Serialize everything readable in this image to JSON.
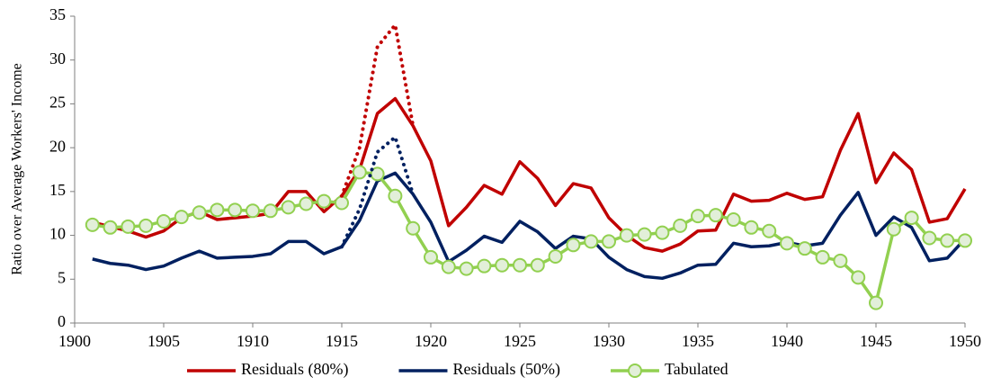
{
  "chart_data": {
    "type": "line",
    "y_label": "Ratio over Average Workers' Income",
    "x": [
      1901,
      1902,
      1903,
      1904,
      1905,
      1906,
      1907,
      1908,
      1909,
      1910,
      1911,
      1912,
      1913,
      1914,
      1915,
      1916,
      1917,
      1918,
      1919,
      1920,
      1921,
      1922,
      1923,
      1924,
      1925,
      1926,
      1927,
      1928,
      1929,
      1930,
      1931,
      1932,
      1933,
      1934,
      1935,
      1936,
      1937,
      1938,
      1939,
      1940,
      1941,
      1942,
      1943,
      1944,
      1945,
      1946,
      1947,
      1948,
      1949,
      1950
    ],
    "xlim": [
      1900,
      1950
    ],
    "xticks": [
      1900,
      1905,
      1910,
      1915,
      1920,
      1925,
      1930,
      1935,
      1940,
      1945,
      1950
    ],
    "ylim": [
      0,
      35
    ],
    "yticks": [
      0,
      5,
      10,
      15,
      20,
      25,
      30,
      35
    ],
    "series": [
      {
        "name": "Residuals (80%)",
        "color": "#c00000",
        "values": [
          11.5,
          11,
          10.5,
          9.8,
          10.5,
          12,
          12.7,
          11.8,
          12,
          12.2,
          12.5,
          15,
          15,
          12.7,
          14.5,
          17.5,
          23.9,
          25.6,
          22.5,
          18.5,
          11.1,
          13.2,
          15.7,
          14.7,
          18.4,
          16.5,
          13.4,
          15.9,
          15.4,
          12,
          10,
          8.6,
          8.2,
          9,
          10.5,
          10.6,
          14.7,
          13.9,
          14,
          14.8,
          14.1,
          14.4,
          19.7,
          23.9,
          16,
          19.4,
          17.5,
          11.5,
          11.9,
          15.3
        ]
      },
      {
        "name": "Residuals (50%)",
        "color": "#002060",
        "values": [
          7.3,
          6.8,
          6.6,
          6.1,
          6.5,
          7.4,
          8.2,
          7.4,
          7.5,
          7.6,
          7.9,
          9.3,
          9.3,
          7.9,
          8.7,
          11.7,
          16.2,
          17.1,
          14.7,
          11.5,
          7,
          8.3,
          9.9,
          9.2,
          11.6,
          10.4,
          8.5,
          9.9,
          9.6,
          7.5,
          6.1,
          5.3,
          5.1,
          5.7,
          6.6,
          6.7,
          9.1,
          8.7,
          8.8,
          9.2,
          8.8,
          9.1,
          12.3,
          14.9,
          10,
          12.1,
          10.9,
          7.1,
          7.4,
          9.6
        ]
      },
      {
        "name": "Tabulated",
        "color": "#92d050",
        "marker": true,
        "values": [
          11.2,
          10.9,
          11,
          11.1,
          11.6,
          12.1,
          12.6,
          12.9,
          12.9,
          12.8,
          12.8,
          13.2,
          13.6,
          13.9,
          13.7,
          17.2,
          17,
          14.5,
          10.8,
          7.5,
          6.4,
          6.2,
          6.5,
          6.6,
          6.6,
          6.6,
          7.6,
          8.9,
          9.3,
          9.3,
          10,
          10.1,
          10.3,
          11.1,
          12.2,
          12.3,
          11.8,
          10.9,
          10.5,
          9.1,
          8.5,
          7.5,
          7.1,
          5.2,
          2.3,
          10.7,
          12,
          9.7,
          9.4,
          9.4
        ]
      },
      {
        "color": "#c00000",
        "dotted": true,
        "values": [
          null,
          null,
          null,
          null,
          null,
          null,
          null,
          null,
          null,
          null,
          null,
          null,
          null,
          null,
          14.5,
          20,
          31.5,
          34,
          22.5,
          null,
          null,
          null,
          null,
          null,
          null,
          null,
          null,
          null,
          null,
          null,
          null,
          null,
          null,
          null,
          null,
          null,
          null,
          null,
          null,
          null,
          null,
          null,
          null,
          null,
          null,
          null,
          null,
          null,
          null,
          null
        ]
      },
      {
        "color": "#002060",
        "dotted": true,
        "values": [
          null,
          null,
          null,
          null,
          null,
          null,
          null,
          null,
          null,
          null,
          null,
          null,
          null,
          null,
          8.7,
          13,
          19.5,
          21.2,
          14.7,
          null,
          null,
          null,
          null,
          null,
          null,
          null,
          null,
          null,
          null,
          null,
          null,
          null,
          null,
          null,
          null,
          null,
          null,
          null,
          null,
          null,
          null,
          null,
          null,
          null,
          null,
          null,
          null,
          null,
          null,
          null
        ]
      }
    ]
  }
}
